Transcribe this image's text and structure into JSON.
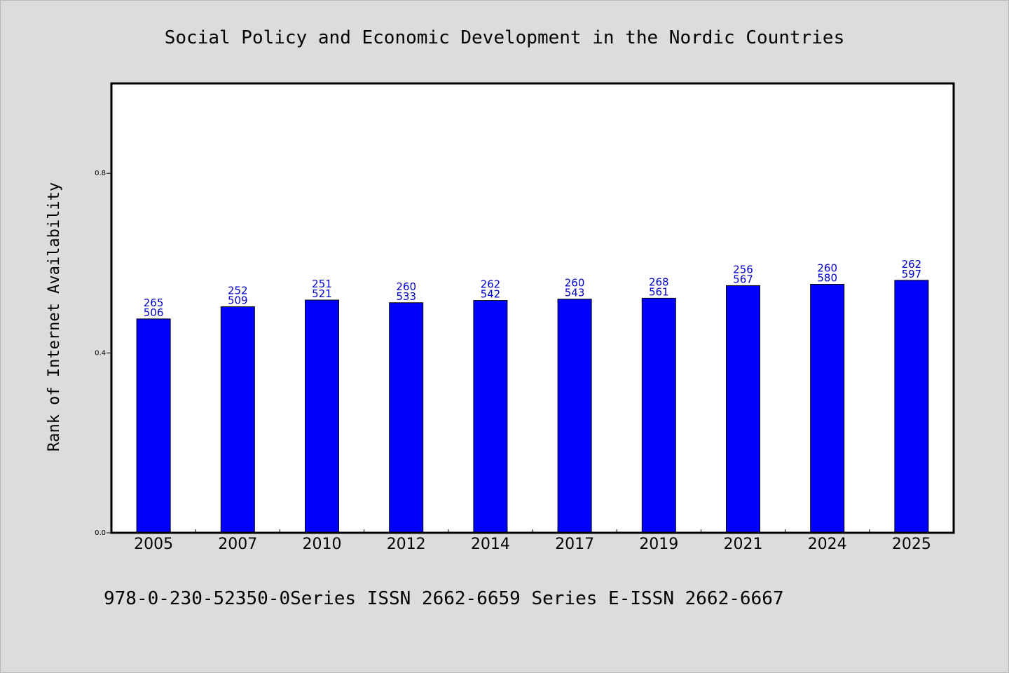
{
  "chart_data": {
    "type": "bar",
    "title": "Social Policy and Economic Development in the Nordic Countries",
    "ylabel": "Rank of Internet Availability",
    "xlabel": "",
    "categories": [
      "2005",
      "2007",
      "2010",
      "2012",
      "2014",
      "2017",
      "2019",
      "2021",
      "2024",
      "2025"
    ],
    "values": [
      0.476,
      0.503,
      0.518,
      0.512,
      0.517,
      0.52,
      0.522,
      0.55,
      0.553,
      0.562
    ],
    "label_top": [
      "265",
      "252",
      "251",
      "260",
      "262",
      "260",
      "268",
      "256",
      "260",
      "262"
    ],
    "label_bottom": [
      "506",
      "509",
      "521",
      "533",
      "542",
      "543",
      "561",
      "567",
      "580",
      "597"
    ],
    "ylim": [
      0,
      1.0
    ],
    "yticks": [
      0.0,
      0.4,
      0.8
    ],
    "ytick_labels": [
      "0.0",
      "0.4",
      "0.8"
    ],
    "grid": false,
    "bar_color": "#0000ff",
    "label_color": "#0000cc",
    "footer": "978-0-230-52350-0Series ISSN 2662-6659 Series E-ISSN 2662-6667"
  }
}
